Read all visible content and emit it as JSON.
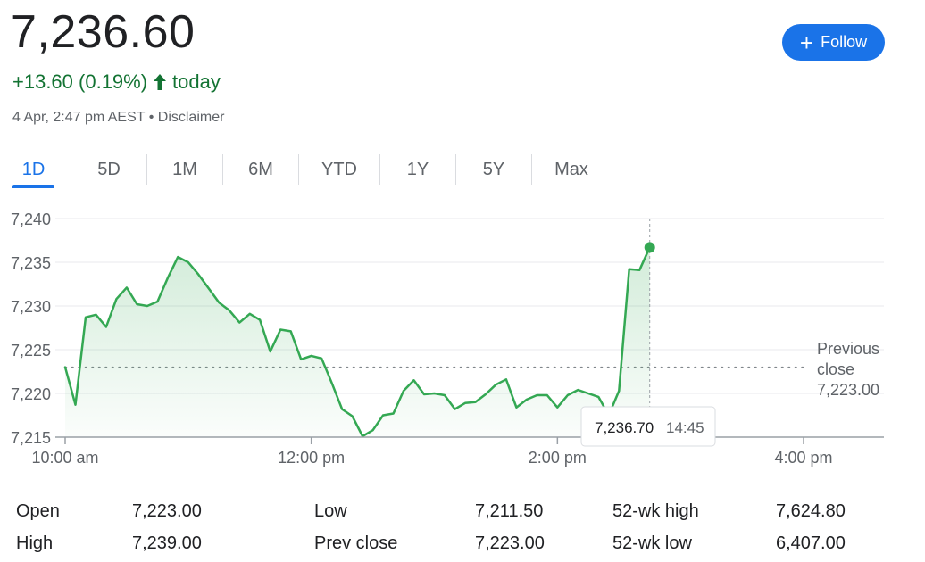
{
  "quote": {
    "price": "7,236.60",
    "change": "+13.60 (0.19%)",
    "change_period": "today",
    "timestamp": "4 Apr, 2:47 pm AEST",
    "separator": "•",
    "disclaimer": "Disclaimer"
  },
  "follow_button": {
    "icon": "plus-icon",
    "label": "Follow"
  },
  "tabs": [
    {
      "label": "1D",
      "active": true
    },
    {
      "label": "5D"
    },
    {
      "label": "1M"
    },
    {
      "label": "6M"
    },
    {
      "label": "YTD"
    },
    {
      "label": "1Y"
    },
    {
      "label": "5Y"
    },
    {
      "label": "Max"
    }
  ],
  "colors": {
    "line": "#34a853",
    "positive": "#137333",
    "accent": "#1a73e8",
    "grid": "#e8eaed",
    "text_secondary": "#5f6368"
  },
  "chart_data": {
    "type": "line",
    "grid": true,
    "ylim": [
      7215,
      7240
    ],
    "xlim": [
      "10:00",
      "16:00"
    ],
    "y_ticks": [
      "7,240",
      "7,235",
      "7,230",
      "7,225",
      "7,220",
      "7,215"
    ],
    "x_ticks": [
      "10:00 am",
      "12:00 pm",
      "2:00 pm",
      "4:00 pm"
    ],
    "series": [
      {
        "x": [
          "10:00",
          "10:05",
          "10:10",
          "10:15",
          "10:20",
          "10:25",
          "10:30",
          "10:35",
          "10:40",
          "10:45",
          "10:50",
          "10:55",
          "11:00",
          "11:05",
          "11:10",
          "11:15",
          "11:20",
          "11:25",
          "11:30",
          "11:35",
          "11:40",
          "11:45",
          "11:50",
          "11:55",
          "12:00",
          "12:05",
          "12:10",
          "12:15",
          "12:20",
          "12:25",
          "12:30",
          "12:35",
          "12:40",
          "12:45",
          "12:50",
          "12:55",
          "13:00",
          "13:05",
          "13:10",
          "13:15",
          "13:20",
          "13:25",
          "13:30",
          "13:35",
          "13:40",
          "13:45",
          "13:50",
          "13:55",
          "14:00",
          "14:05",
          "14:10",
          "14:15",
          "14:20",
          "14:25",
          "14:30",
          "14:35",
          "14:40",
          "14:45"
        ],
        "values": [
          7223.0,
          7218.7,
          7228.7,
          7229.0,
          7227.6,
          7230.8,
          7232.1,
          7230.2,
          7230.0,
          7230.5,
          7233.2,
          7235.6,
          7235.0,
          7233.6,
          7232.0,
          7230.4,
          7229.5,
          7228.1,
          7229.1,
          7228.4,
          7224.8,
          7227.3,
          7227.1,
          7223.9,
          7224.3,
          7224.0,
          7221.2,
          7218.2,
          7217.4,
          7215.1,
          7215.8,
          7217.5,
          7217.7,
          7220.3,
          7221.5,
          7219.9,
          7220.0,
          7219.8,
          7218.2,
          7218.9,
          7219.0,
          7219.9,
          7221.0,
          7221.6,
          7218.4,
          7219.3,
          7219.8,
          7219.8,
          7218.4,
          7219.8,
          7220.4,
          7220.0,
          7219.6,
          7217.5,
          7220.3,
          7234.2,
          7234.1,
          7236.7
        ]
      }
    ],
    "reference_line": {
      "label_line1": "Previous",
      "label_line2": "close",
      "value_label": "7,223.00",
      "value": 7223.0
    },
    "tooltip": {
      "value": "7,236.70",
      "time": "14:45"
    }
  },
  "stats": [
    {
      "label": "Open",
      "value": "7,223.00"
    },
    {
      "label": "High",
      "value": "7,239.00"
    },
    {
      "label": "Low",
      "value": "7,211.50"
    },
    {
      "label": "Prev close",
      "value": "7,223.00"
    },
    {
      "label": "52-wk high",
      "value": "7,624.80"
    },
    {
      "label": "52-wk low",
      "value": "6,407.00"
    }
  ]
}
